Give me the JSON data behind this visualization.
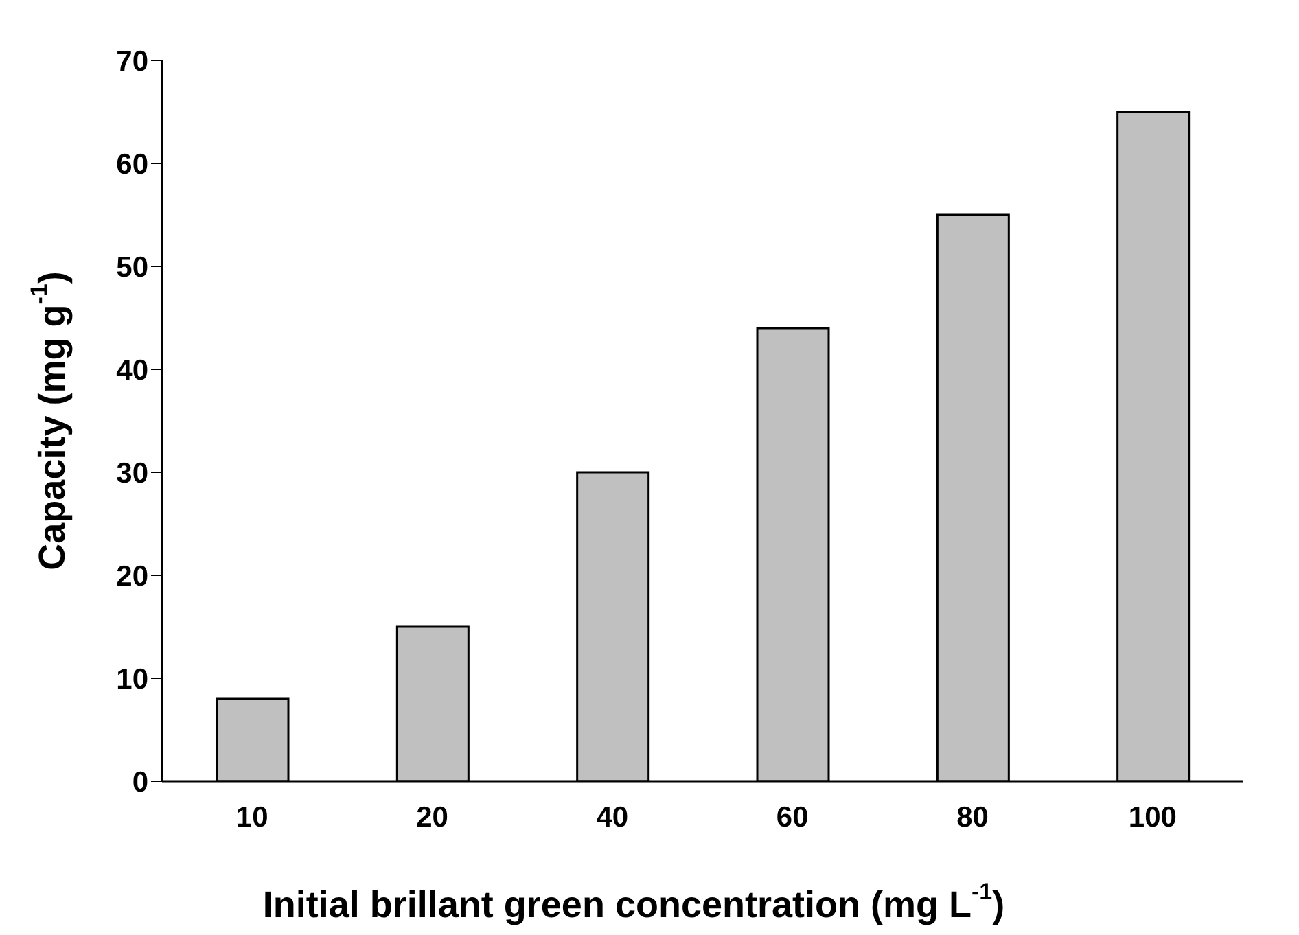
{
  "chart_data": {
    "type": "bar",
    "xlabel": "Initial brillant green concentration (mg L$^{-1}$)",
    "ylabel": "Capacity (mg g$^{-1}$)",
    "categories": [
      "10",
      "20",
      "40",
      "60",
      "80",
      "100"
    ],
    "values": [
      8,
      15,
      30,
      44,
      55,
      65
    ],
    "color": "#c0c0c0",
    "ylim": [
      0,
      70
    ],
    "yticks": [
      0,
      10,
      20,
      30,
      40,
      50,
      60,
      70
    ],
    "grid": false,
    "legend": false
  }
}
